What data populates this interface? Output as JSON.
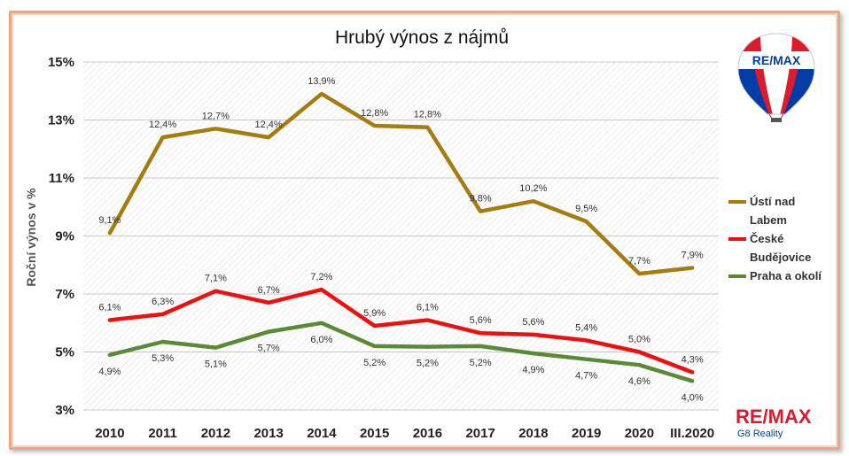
{
  "chart_data": {
    "type": "line",
    "title": "Hrubý výnos z nájmů",
    "ylabel": "Roční výnos v %",
    "xlabel": "",
    "categories": [
      "2010",
      "2011",
      "2012",
      "2013",
      "2014",
      "2015",
      "2016",
      "2017",
      "2018",
      "2019",
      "2020",
      "III.2020"
    ],
    "ylim": [
      3,
      15
    ],
    "yticks": [
      3,
      5,
      7,
      9,
      11,
      13,
      15
    ],
    "ytick_labels": [
      "3%",
      "5%",
      "7%",
      "9%",
      "11%",
      "13%",
      "15%"
    ],
    "grid": true,
    "legend_position": "right",
    "series": [
      {
        "name": "Ústí nad Labem",
        "legend_lines": [
          "Ústí nad",
          "Labem"
        ],
        "color": "#a47d10",
        "values": [
          9.1,
          12.4,
          12.7,
          12.4,
          13.9,
          12.8,
          12.75,
          9.85,
          10.2,
          9.5,
          7.7,
          7.9
        ],
        "labels": [
          "9,1%",
          "12,4%",
          "12,7%",
          "12,4%",
          "13,9%",
          "12,8%",
          "12,8%",
          "9,8%",
          "10,2%",
          "9,5%",
          "7,7%",
          "7,9%"
        ]
      },
      {
        "name": "České Budějovice",
        "legend_lines": [
          "České",
          "Budějovice"
        ],
        "color": "#ee1010",
        "values": [
          6.1,
          6.3,
          7.1,
          6.7,
          7.15,
          5.9,
          6.1,
          5.65,
          5.6,
          5.4,
          5.0,
          4.3
        ],
        "labels": [
          "6,1%",
          "6,3%",
          "7,1%",
          "6,7%",
          "7,2%",
          "5,9%",
          "6,1%",
          "5,6%",
          "5,6%",
          "5,4%",
          "5,0%",
          "4,3%"
        ]
      },
      {
        "name": "Praha a okolí",
        "legend_lines": [
          "Praha a okolí"
        ],
        "color": "#5a8a38",
        "values": [
          4.9,
          5.35,
          5.15,
          5.7,
          6.0,
          5.2,
          5.18,
          5.2,
          4.95,
          4.75,
          4.55,
          4.0
        ],
        "labels": [
          "4,9%",
          "5,3%",
          "5,1%",
          "5,7%",
          "6,0%",
          "5,2%",
          "5,2%",
          "5,2%",
          "4,9%",
          "4,7%",
          "4,6%",
          "4,0%"
        ]
      }
    ]
  },
  "branding": {
    "balloon_text": "RE/MAX",
    "footer_logo": "RE/MAX",
    "footer_subtitle": "G8 Reality",
    "colors": {
      "red": "#dc1c2e",
      "blue": "#003da5"
    }
  }
}
